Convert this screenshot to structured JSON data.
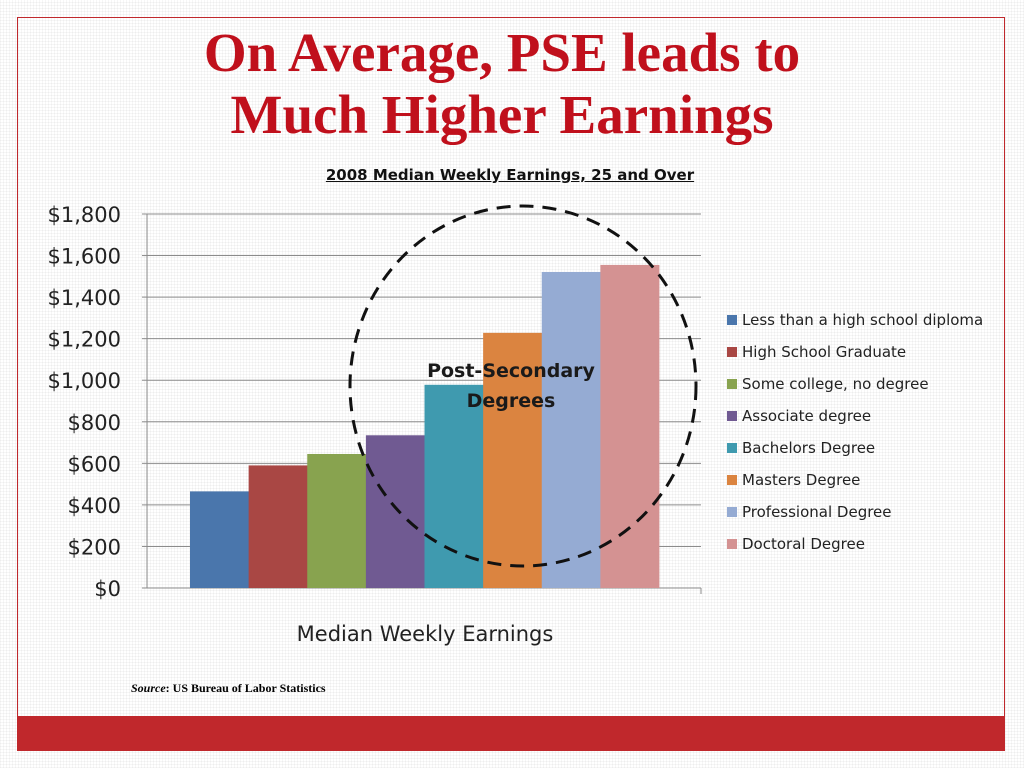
{
  "slide": {
    "title_line1": "On Average, PSE leads to",
    "title_line2": "Much Higher Earnings",
    "source_label": "Source",
    "source_text": ": US Bureau of Labor Statistics",
    "colors": {
      "title": "#c0101c",
      "accent_bar": "#c0282c"
    }
  },
  "chart_data": {
    "type": "bar",
    "title": "2008 Median Weekly Earnings, 25 and Over",
    "xlabel": "Median Weekly Earnings",
    "ylabel": "",
    "ylim": [
      0,
      1800
    ],
    "y_ticks": [
      0,
      200,
      400,
      600,
      800,
      1000,
      1200,
      1400,
      1600,
      1800
    ],
    "y_tick_labels": [
      "$0",
      "$200",
      "$400",
      "$600",
      "$800",
      "$1,000",
      "$1,200",
      "$1,400",
      "$1,600",
      "$1,800"
    ],
    "grid": true,
    "legend_position": "right",
    "categories": [
      "Median Weekly Earnings"
    ],
    "series": [
      {
        "name": "Less than a high school diploma",
        "values": [
          465
        ],
        "color": "#4a76ac"
      },
      {
        "name": "High School Graduate",
        "values": [
          590
        ],
        "color": "#a94744"
      },
      {
        "name": "Some college, no degree",
        "values": [
          645
        ],
        "color": "#88a34f"
      },
      {
        "name": "Associate degree",
        "values": [
          735
        ],
        "color": "#705a92"
      },
      {
        "name": "Bachelors Degree",
        "values": [
          978
        ],
        "color": "#3f9aaf"
      },
      {
        "name": "Masters Degree",
        "values": [
          1228
        ],
        "color": "#db8440"
      },
      {
        "name": "Professional Degree",
        "values": [
          1521
        ],
        "color": "#95abd3"
      },
      {
        "name": "Doctoral Degree",
        "values": [
          1555
        ],
        "color": "#d49292"
      }
    ],
    "annotation": {
      "text_line1": "Post-Secondary",
      "text_line2": "Degrees"
    }
  }
}
